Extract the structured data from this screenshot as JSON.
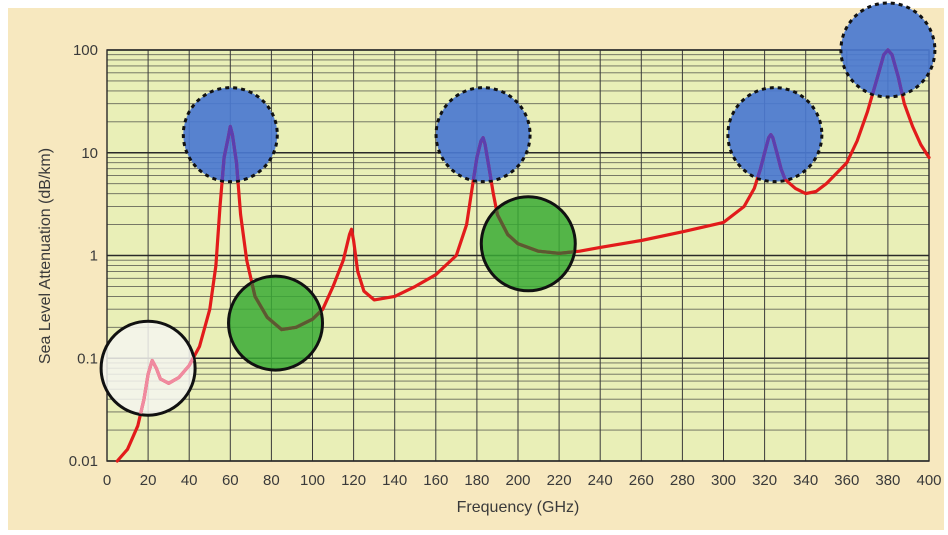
{
  "chart_data": {
    "type": "line",
    "xlabel": "Frequency (GHz)",
    "ylabel": "Sea Level Attenuation (dB/km)",
    "xlim": [
      0,
      400
    ],
    "ylim": [
      0.01,
      100
    ],
    "yscale": "log",
    "grid": true,
    "x_ticks": [
      "0",
      "20",
      "40",
      "60",
      "80",
      "100",
      "120",
      "140",
      "160",
      "180",
      "200",
      "220",
      "240",
      "260",
      "280",
      "300",
      "320",
      "340",
      "360",
      "380",
      "400"
    ],
    "y_ticks": [
      "0.01",
      "0.1",
      "1",
      "10",
      "100"
    ],
    "series": [
      {
        "color": "#e21b1b",
        "points": [
          [
            5,
            0.01
          ],
          [
            10,
            0.013
          ],
          [
            15,
            0.022
          ],
          [
            18,
            0.04
          ],
          [
            20,
            0.07
          ],
          [
            22,
            0.095
          ],
          [
            24,
            0.08
          ],
          [
            26,
            0.063
          ],
          [
            30,
            0.057
          ],
          [
            35,
            0.065
          ],
          [
            40,
            0.085
          ],
          [
            45,
            0.13
          ],
          [
            50,
            0.3
          ],
          [
            53,
            0.8
          ],
          [
            55,
            3
          ],
          [
            57,
            9
          ],
          [
            59,
            14
          ],
          [
            60,
            18
          ],
          [
            61,
            15
          ],
          [
            63,
            8
          ],
          [
            65,
            2.5
          ],
          [
            68,
            0.9
          ],
          [
            72,
            0.4
          ],
          [
            78,
            0.25
          ],
          [
            85,
            0.19
          ],
          [
            92,
            0.2
          ],
          [
            100,
            0.24
          ],
          [
            105,
            0.3
          ],
          [
            110,
            0.5
          ],
          [
            115,
            0.9
          ],
          [
            118,
            1.6
          ],
          [
            119,
            1.8
          ],
          [
            120,
            1.4
          ],
          [
            122,
            0.7
          ],
          [
            125,
            0.45
          ],
          [
            130,
            0.37
          ],
          [
            140,
            0.4
          ],
          [
            150,
            0.5
          ],
          [
            160,
            0.65
          ],
          [
            170,
            1
          ],
          [
            175,
            2
          ],
          [
            178,
            5
          ],
          [
            180,
            9
          ],
          [
            182,
            13
          ],
          [
            183,
            14
          ],
          [
            184,
            12
          ],
          [
            186,
            7
          ],
          [
            188,
            4
          ],
          [
            190,
            2.5
          ],
          [
            195,
            1.6
          ],
          [
            200,
            1.3
          ],
          [
            210,
            1.1
          ],
          [
            220,
            1.05
          ],
          [
            230,
            1.1
          ],
          [
            240,
            1.2
          ],
          [
            260,
            1.4
          ],
          [
            280,
            1.7
          ],
          [
            300,
            2.1
          ],
          [
            310,
            3
          ],
          [
            315,
            4.5
          ],
          [
            318,
            7
          ],
          [
            320,
            10
          ],
          [
            322,
            14
          ],
          [
            323,
            15
          ],
          [
            324,
            14
          ],
          [
            326,
            10
          ],
          [
            328,
            7
          ],
          [
            330,
            5.5
          ],
          [
            335,
            4.5
          ],
          [
            340,
            4
          ],
          [
            345,
            4.2
          ],
          [
            350,
            5
          ],
          [
            360,
            8
          ],
          [
            365,
            13
          ],
          [
            370,
            25
          ],
          [
            375,
            55
          ],
          [
            378,
            90
          ],
          [
            380,
            100
          ],
          [
            382,
            90
          ],
          [
            385,
            55
          ],
          [
            388,
            30
          ],
          [
            392,
            18
          ],
          [
            396,
            12
          ],
          [
            400,
            9
          ]
        ]
      }
    ],
    "highlights": [
      {
        "x": 60,
        "y": 15,
        "color": "#4a78d0",
        "style": "dotted"
      },
      {
        "x": 183,
        "y": 15,
        "color": "#4a78d0",
        "style": "dotted"
      },
      {
        "x": 325,
        "y": 15,
        "color": "#4a78d0",
        "style": "dotted"
      },
      {
        "x": 380,
        "y": 100,
        "color": "#4a78d0",
        "style": "dotted"
      },
      {
        "x": 82,
        "y": 0.22,
        "color": "#3aaa35",
        "style": "solid"
      },
      {
        "x": 205,
        "y": 1.3,
        "color": "#3aaa35",
        "style": "solid"
      },
      {
        "x": 20,
        "y": 0.08,
        "color": "#f4f4f0",
        "style": "solid"
      }
    ]
  }
}
